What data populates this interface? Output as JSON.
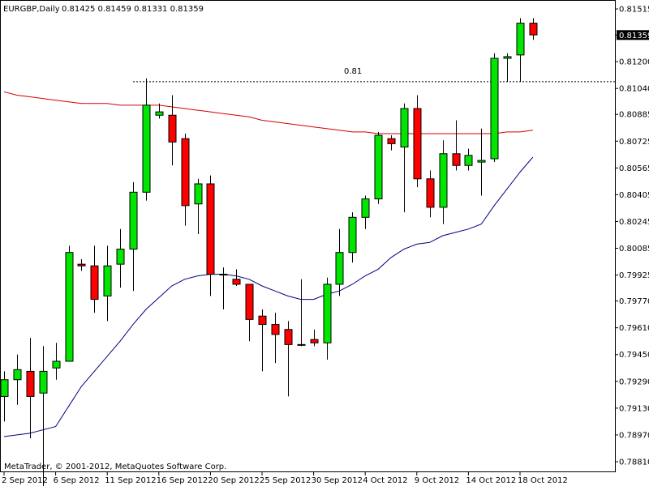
{
  "header": {
    "symbol": "EURGBP,Daily",
    "ohlc": "0.81425 0.81459 0.81331 0.81359"
  },
  "footer": {
    "copyright": "MetaTrader, © 2001-2012, MetaQuotes Software Corp."
  },
  "price_tag": "0.81359",
  "level_label": "0.81",
  "colors": {
    "bull": "#00e600",
    "bear": "#ff0000",
    "wick": "#000000",
    "ma_slow": "#d40000",
    "ma_fast": "#00007f",
    "level": "#000000",
    "current_price_bg": "#000000",
    "current_price_fg": "#ffffff"
  },
  "chart_data": {
    "type": "candlestick",
    "title": "EURGBP,Daily",
    "y_ticks": [
      "0.81515",
      "0.81359",
      "0.81200",
      "0.81040",
      "0.80885",
      "0.80725",
      "0.80565",
      "0.80405",
      "0.80245",
      "0.80085",
      "0.79925",
      "0.79770",
      "0.79610",
      "0.79450",
      "0.79290",
      "0.79130",
      "0.78970",
      "0.78810"
    ],
    "ylim": [
      0.7881,
      0.8152
    ],
    "x_ticks": [
      "2 Sep 2012",
      "6 Sep 2012",
      "11 Sep 2012",
      "16 Sep 2012",
      "20 Sep 2012",
      "25 Sep 2012",
      "30 Sep 2012",
      "4 Oct 2012",
      "9 Oct 2012",
      "14 Oct 2012",
      "18 Oct 2012"
    ],
    "x_tick_index": [
      0,
      4,
      8,
      12,
      16,
      20,
      24,
      28,
      32,
      36,
      40
    ],
    "current_price": 0.81359,
    "horizontal_level": 0.8108,
    "level_start_index": 10,
    "candles": [
      {
        "o": 0.792,
        "h": 0.7935,
        "l": 0.7905,
        "c": 0.793
      },
      {
        "o": 0.793,
        "h": 0.7945,
        "l": 0.7915,
        "c": 0.7936
      },
      {
        "o": 0.7935,
        "h": 0.7955,
        "l": 0.7895,
        "c": 0.792
      },
      {
        "o": 0.7922,
        "h": 0.795,
        "l": 0.7865,
        "c": 0.7935
      },
      {
        "o": 0.7937,
        "h": 0.7952,
        "l": 0.793,
        "c": 0.7941
      },
      {
        "o": 0.7941,
        "h": 0.801,
        "l": 0.7941,
        "c": 0.8006
      },
      {
        "o": 0.7999,
        "h": 0.8002,
        "l": 0.7995,
        "c": 0.7998
      },
      {
        "o": 0.7998,
        "h": 0.801,
        "l": 0.797,
        "c": 0.7978
      },
      {
        "o": 0.798,
        "h": 0.801,
        "l": 0.7965,
        "c": 0.7998
      },
      {
        "o": 0.7999,
        "h": 0.802,
        "l": 0.7985,
        "c": 0.8008
      },
      {
        "o": 0.8008,
        "h": 0.8048,
        "l": 0.7983,
        "c": 0.8042
      },
      {
        "o": 0.8042,
        "h": 0.811,
        "l": 0.8037,
        "c": 0.8094
      },
      {
        "o": 0.8088,
        "h": 0.8095,
        "l": 0.8086,
        "c": 0.809
      },
      {
        "o": 0.8088,
        "h": 0.81,
        "l": 0.8058,
        "c": 0.8072
      },
      {
        "o": 0.8074,
        "h": 0.8077,
        "l": 0.8022,
        "c": 0.8034
      },
      {
        "o": 0.8035,
        "h": 0.805,
        "l": 0.8017,
        "c": 0.8047
      },
      {
        "o": 0.8047,
        "h": 0.8052,
        "l": 0.798,
        "c": 0.7993
      },
      {
        "o": 0.7993,
        "h": 0.7997,
        "l": 0.7972,
        "c": 0.7993
      },
      {
        "o": 0.799,
        "h": 0.7996,
        "l": 0.7986,
        "c": 0.7987
      },
      {
        "o": 0.7987,
        "h": 0.7987,
        "l": 0.7953,
        "c": 0.7966
      },
      {
        "o": 0.7968,
        "h": 0.7972,
        "l": 0.7935,
        "c": 0.7963
      },
      {
        "o": 0.7963,
        "h": 0.797,
        "l": 0.794,
        "c": 0.7957
      },
      {
        "o": 0.796,
        "h": 0.7965,
        "l": 0.792,
        "c": 0.7951
      },
      {
        "o": 0.7951,
        "h": 0.799,
        "l": 0.795,
        "c": 0.7951
      },
      {
        "o": 0.7954,
        "h": 0.796,
        "l": 0.795,
        "c": 0.7952
      },
      {
        "o": 0.7952,
        "h": 0.7991,
        "l": 0.7942,
        "c": 0.7987
      },
      {
        "o": 0.7987,
        "h": 0.802,
        "l": 0.798,
        "c": 0.8006
      },
      {
        "o": 0.8006,
        "h": 0.803,
        "l": 0.8,
        "c": 0.8027
      },
      {
        "o": 0.8027,
        "h": 0.804,
        "l": 0.802,
        "c": 0.8038
      },
      {
        "o": 0.8038,
        "h": 0.8078,
        "l": 0.8035,
        "c": 0.8076
      },
      {
        "o": 0.8074,
        "h": 0.8076,
        "l": 0.8067,
        "c": 0.8071
      },
      {
        "o": 0.8069,
        "h": 0.8095,
        "l": 0.803,
        "c": 0.8092
      },
      {
        "o": 0.8092,
        "h": 0.81,
        "l": 0.8045,
        "c": 0.805
      },
      {
        "o": 0.805,
        "h": 0.8055,
        "l": 0.8027,
        "c": 0.8033
      },
      {
        "o": 0.8033,
        "h": 0.8073,
        "l": 0.8023,
        "c": 0.8065
      },
      {
        "o": 0.8065,
        "h": 0.8085,
        "l": 0.8055,
        "c": 0.8058
      },
      {
        "o": 0.8058,
        "h": 0.8068,
        "l": 0.8055,
        "c": 0.8064
      },
      {
        "o": 0.806,
        "h": 0.808,
        "l": 0.804,
        "c": 0.8061
      },
      {
        "o": 0.8062,
        "h": 0.8125,
        "l": 0.806,
        "c": 0.8122
      },
      {
        "o": 0.8122,
        "h": 0.8125,
        "l": 0.8108,
        "c": 0.8123
      },
      {
        "o": 0.8124,
        "h": 0.8146,
        "l": 0.8108,
        "c": 0.8143
      },
      {
        "o": 0.8143,
        "h": 0.8146,
        "l": 0.8133,
        "c": 0.8136
      }
    ],
    "ma_slow": [
      0.8102,
      0.81,
      0.8099,
      0.8098,
      0.8097,
      0.8096,
      0.8095,
      0.8095,
      0.8095,
      0.8094,
      0.8094,
      0.8094,
      0.8094,
      0.8093,
      0.8092,
      0.8091,
      0.809,
      0.8089,
      0.8088,
      0.8087,
      0.8085,
      0.8084,
      0.8083,
      0.8082,
      0.8081,
      0.808,
      0.8079,
      0.8078,
      0.8078,
      0.8077,
      0.8077,
      0.8077,
      0.8077,
      0.8077,
      0.8077,
      0.8077,
      0.8077,
      0.8077,
      0.8077,
      0.8078,
      0.8078,
      0.8079
    ],
    "ma_fast": [
      0.7896,
      0.7897,
      0.7898,
      0.79,
      0.7902,
      0.7914,
      0.7926,
      0.7935,
      0.7944,
      0.7953,
      0.7963,
      0.7972,
      0.7979,
      0.7986,
      0.799,
      0.7992,
      0.7993,
      0.7993,
      0.7992,
      0.799,
      0.7986,
      0.7983,
      0.798,
      0.7978,
      0.7978,
      0.7981,
      0.7983,
      0.7987,
      0.7992,
      0.7996,
      0.8003,
      0.8008,
      0.8011,
      0.8012,
      0.8016,
      0.8018,
      0.802,
      0.8023,
      0.8034,
      0.8044,
      0.8054,
      0.8063
    ]
  }
}
